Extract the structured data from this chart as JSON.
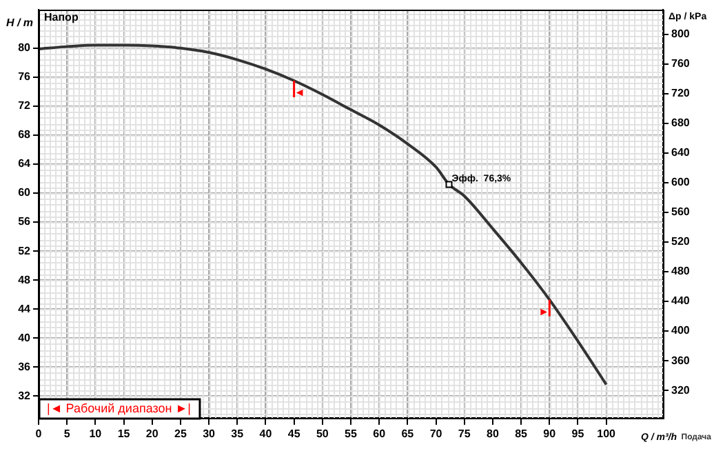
{
  "chart_data": {
    "type": "line",
    "title": "Напор",
    "xlabel": "Q / m³/h",
    "ylabel": "H / m",
    "y2label": "Δp / kPa",
    "x": [
      0,
      5,
      10,
      15,
      20,
      25,
      30,
      35,
      40,
      45,
      50,
      55,
      60,
      65,
      70,
      72.3,
      75,
      80,
      85,
      90,
      95,
      100
    ],
    "series": [
      {
        "color": "#333333",
        "values": [
          79.9,
          80.2,
          80.4,
          80.4,
          80.3,
          80.0,
          79.4,
          78.4,
          77.1,
          75.5,
          73.6,
          71.5,
          69.4,
          66.8,
          63.6,
          61.2,
          59.6,
          55.1,
          50.4,
          45.3,
          39.6,
          33.6
        ]
      }
    ],
    "xlim": [
      0,
      110
    ],
    "xticks": [
      0,
      5,
      10,
      15,
      20,
      25,
      30,
      35,
      40,
      45,
      50,
      55,
      60,
      65,
      70,
      75,
      80,
      85,
      90,
      95,
      100
    ],
    "ylim": [
      29,
      85.3
    ],
    "yticks": [
      32,
      36,
      40,
      44,
      48,
      52,
      56,
      60,
      64,
      68,
      72,
      76,
      80
    ],
    "y2lim": [
      283,
      833
    ],
    "y2ticks": [
      320,
      360,
      400,
      440,
      480,
      520,
      560,
      600,
      640,
      680,
      720,
      760,
      800
    ],
    "annotations": [
      {
        "text": "Эфф.  76,3%",
        "x": 72.3,
        "y": 61.2
      },
      {
        "text": "◄",
        "x": 45,
        "y": 75.5
      },
      {
        "text": "►",
        "x": 90,
        "y": 45.3
      },
      "|◄ Рабочий диапазон ►|",
      "Подача"
    ],
    "grid": true,
    "legend": false,
    "marker": "none",
    "line_style": "solid"
  }
}
